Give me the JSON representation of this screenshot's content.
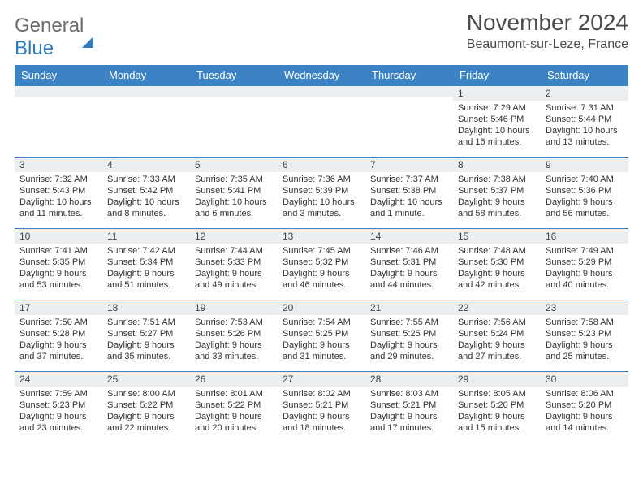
{
  "brand": {
    "general": "General",
    "blue": "Blue"
  },
  "title": "November 2024",
  "location": "Beaumont-sur-Leze, France",
  "colors": {
    "header_bg": "#3b83c4",
    "header_text": "#ffffff",
    "daynum_bg": "#eceff1",
    "border": "#3b83c4",
    "text": "#333333",
    "brand_blue": "#2f7abf"
  },
  "weekdays": [
    "Sunday",
    "Monday",
    "Tuesday",
    "Wednesday",
    "Thursday",
    "Friday",
    "Saturday"
  ],
  "weeks": [
    [
      {
        "n": "",
        "sr": "",
        "ss": "",
        "dl": ""
      },
      {
        "n": "",
        "sr": "",
        "ss": "",
        "dl": ""
      },
      {
        "n": "",
        "sr": "",
        "ss": "",
        "dl": ""
      },
      {
        "n": "",
        "sr": "",
        "ss": "",
        "dl": ""
      },
      {
        "n": "",
        "sr": "",
        "ss": "",
        "dl": ""
      },
      {
        "n": "1",
        "sr": "Sunrise: 7:29 AM",
        "ss": "Sunset: 5:46 PM",
        "dl": "Daylight: 10 hours and 16 minutes."
      },
      {
        "n": "2",
        "sr": "Sunrise: 7:31 AM",
        "ss": "Sunset: 5:44 PM",
        "dl": "Daylight: 10 hours and 13 minutes."
      }
    ],
    [
      {
        "n": "3",
        "sr": "Sunrise: 7:32 AM",
        "ss": "Sunset: 5:43 PM",
        "dl": "Daylight: 10 hours and 11 minutes."
      },
      {
        "n": "4",
        "sr": "Sunrise: 7:33 AM",
        "ss": "Sunset: 5:42 PM",
        "dl": "Daylight: 10 hours and 8 minutes."
      },
      {
        "n": "5",
        "sr": "Sunrise: 7:35 AM",
        "ss": "Sunset: 5:41 PM",
        "dl": "Daylight: 10 hours and 6 minutes."
      },
      {
        "n": "6",
        "sr": "Sunrise: 7:36 AM",
        "ss": "Sunset: 5:39 PM",
        "dl": "Daylight: 10 hours and 3 minutes."
      },
      {
        "n": "7",
        "sr": "Sunrise: 7:37 AM",
        "ss": "Sunset: 5:38 PM",
        "dl": "Daylight: 10 hours and 1 minute."
      },
      {
        "n": "8",
        "sr": "Sunrise: 7:38 AM",
        "ss": "Sunset: 5:37 PM",
        "dl": "Daylight: 9 hours and 58 minutes."
      },
      {
        "n": "9",
        "sr": "Sunrise: 7:40 AM",
        "ss": "Sunset: 5:36 PM",
        "dl": "Daylight: 9 hours and 56 minutes."
      }
    ],
    [
      {
        "n": "10",
        "sr": "Sunrise: 7:41 AM",
        "ss": "Sunset: 5:35 PM",
        "dl": "Daylight: 9 hours and 53 minutes."
      },
      {
        "n": "11",
        "sr": "Sunrise: 7:42 AM",
        "ss": "Sunset: 5:34 PM",
        "dl": "Daylight: 9 hours and 51 minutes."
      },
      {
        "n": "12",
        "sr": "Sunrise: 7:44 AM",
        "ss": "Sunset: 5:33 PM",
        "dl": "Daylight: 9 hours and 49 minutes."
      },
      {
        "n": "13",
        "sr": "Sunrise: 7:45 AM",
        "ss": "Sunset: 5:32 PM",
        "dl": "Daylight: 9 hours and 46 minutes."
      },
      {
        "n": "14",
        "sr": "Sunrise: 7:46 AM",
        "ss": "Sunset: 5:31 PM",
        "dl": "Daylight: 9 hours and 44 minutes."
      },
      {
        "n": "15",
        "sr": "Sunrise: 7:48 AM",
        "ss": "Sunset: 5:30 PM",
        "dl": "Daylight: 9 hours and 42 minutes."
      },
      {
        "n": "16",
        "sr": "Sunrise: 7:49 AM",
        "ss": "Sunset: 5:29 PM",
        "dl": "Daylight: 9 hours and 40 minutes."
      }
    ],
    [
      {
        "n": "17",
        "sr": "Sunrise: 7:50 AM",
        "ss": "Sunset: 5:28 PM",
        "dl": "Daylight: 9 hours and 37 minutes."
      },
      {
        "n": "18",
        "sr": "Sunrise: 7:51 AM",
        "ss": "Sunset: 5:27 PM",
        "dl": "Daylight: 9 hours and 35 minutes."
      },
      {
        "n": "19",
        "sr": "Sunrise: 7:53 AM",
        "ss": "Sunset: 5:26 PM",
        "dl": "Daylight: 9 hours and 33 minutes."
      },
      {
        "n": "20",
        "sr": "Sunrise: 7:54 AM",
        "ss": "Sunset: 5:25 PM",
        "dl": "Daylight: 9 hours and 31 minutes."
      },
      {
        "n": "21",
        "sr": "Sunrise: 7:55 AM",
        "ss": "Sunset: 5:25 PM",
        "dl": "Daylight: 9 hours and 29 minutes."
      },
      {
        "n": "22",
        "sr": "Sunrise: 7:56 AM",
        "ss": "Sunset: 5:24 PM",
        "dl": "Daylight: 9 hours and 27 minutes."
      },
      {
        "n": "23",
        "sr": "Sunrise: 7:58 AM",
        "ss": "Sunset: 5:23 PM",
        "dl": "Daylight: 9 hours and 25 minutes."
      }
    ],
    [
      {
        "n": "24",
        "sr": "Sunrise: 7:59 AM",
        "ss": "Sunset: 5:23 PM",
        "dl": "Daylight: 9 hours and 23 minutes."
      },
      {
        "n": "25",
        "sr": "Sunrise: 8:00 AM",
        "ss": "Sunset: 5:22 PM",
        "dl": "Daylight: 9 hours and 22 minutes."
      },
      {
        "n": "26",
        "sr": "Sunrise: 8:01 AM",
        "ss": "Sunset: 5:22 PM",
        "dl": "Daylight: 9 hours and 20 minutes."
      },
      {
        "n": "27",
        "sr": "Sunrise: 8:02 AM",
        "ss": "Sunset: 5:21 PM",
        "dl": "Daylight: 9 hours and 18 minutes."
      },
      {
        "n": "28",
        "sr": "Sunrise: 8:03 AM",
        "ss": "Sunset: 5:21 PM",
        "dl": "Daylight: 9 hours and 17 minutes."
      },
      {
        "n": "29",
        "sr": "Sunrise: 8:05 AM",
        "ss": "Sunset: 5:20 PM",
        "dl": "Daylight: 9 hours and 15 minutes."
      },
      {
        "n": "30",
        "sr": "Sunrise: 8:06 AM",
        "ss": "Sunset: 5:20 PM",
        "dl": "Daylight: 9 hours and 14 minutes."
      }
    ]
  ]
}
